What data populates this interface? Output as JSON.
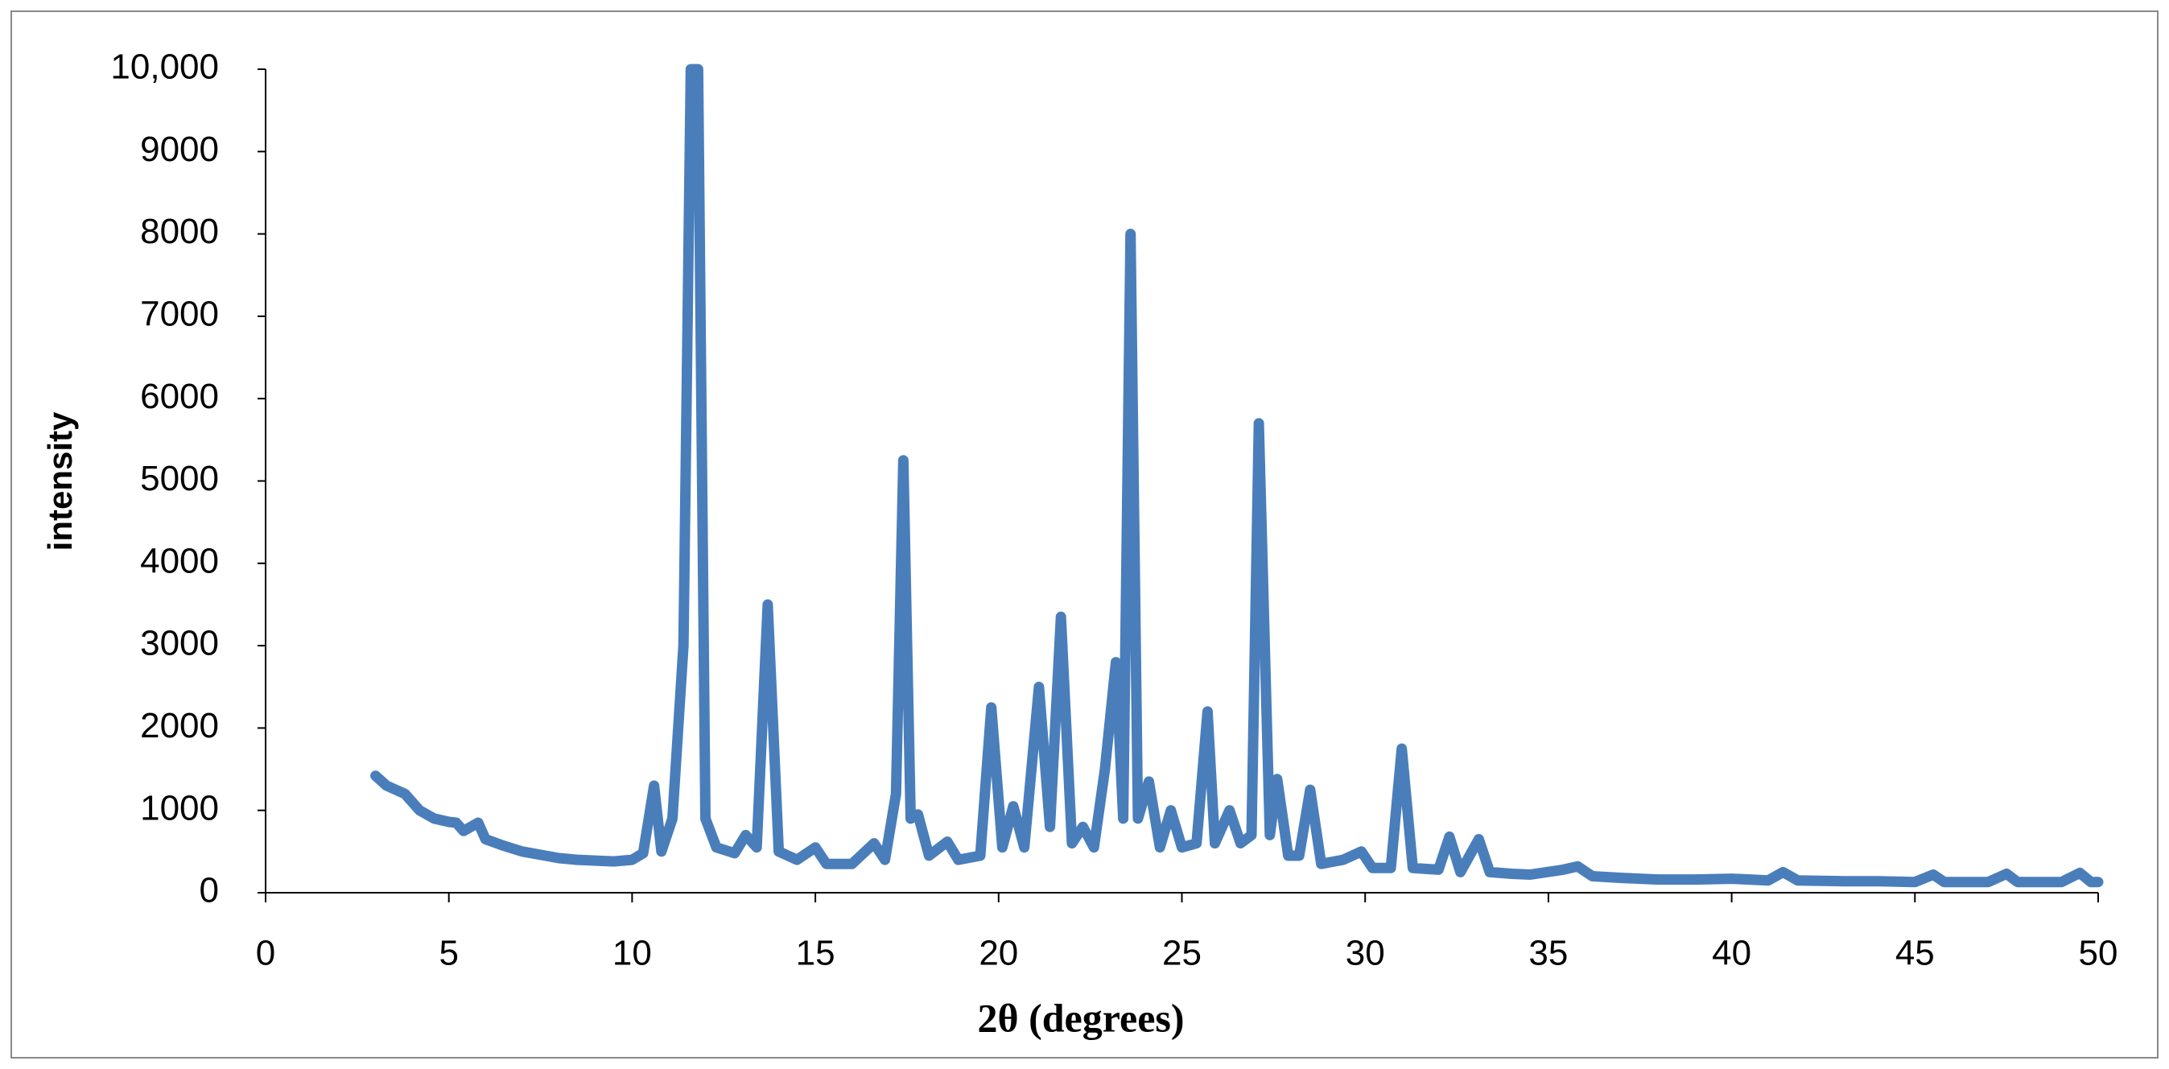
{
  "chart_data": {
    "type": "line",
    "x_label": "2θ (degrees)",
    "y_label": "intensity",
    "color": "#4a7ebb",
    "xlim": [
      0,
      50
    ],
    "xticks": [
      0,
      5,
      10,
      15,
      20,
      25,
      30,
      35,
      40,
      45,
      50
    ],
    "ylim": [
      0,
      10000
    ],
    "yticks": [
      0,
      1000,
      2000,
      3000,
      4000,
      5000,
      6000,
      7000,
      8000,
      9000,
      {
        "value": 10000,
        "label": "10,000"
      }
    ],
    "x": [
      3.0,
      3.3,
      3.8,
      4.2,
      4.6,
      5.0,
      5.2,
      5.4,
      5.8,
      6.0,
      6.5,
      7,
      7.5,
      8,
      8.5,
      9,
      9.5,
      10,
      10.3,
      10.6,
      10.8,
      11.1,
      11.4,
      11.6,
      11.8,
      12.0,
      12.3,
      12.8,
      13.1,
      13.4,
      13.7,
      14.0,
      14.5,
      15.0,
      15.3,
      16,
      16.6,
      16.9,
      17.2,
      17.4,
      17.6,
      17.8,
      18.1,
      18.6,
      18.9,
      19.5,
      19.8,
      20.1,
      20.4,
      20.7,
      21.1,
      21.4,
      21.7,
      22.0,
      22.3,
      22.6,
      22.9,
      23.2,
      23.4,
      23.6,
      23.8,
      24.1,
      24.4,
      24.7,
      25,
      25.4,
      25.7,
      25.9,
      26.3,
      26.6,
      26.9,
      27.1,
      27.4,
      27.6,
      27.9,
      28.2,
      28.5,
      28.8,
      29.4,
      29.9,
      30.2,
      30.7,
      31.0,
      31.3,
      32,
      32.3,
      32.6,
      33.1,
      33.4,
      34,
      34.5,
      35.4,
      35.8,
      36.2,
      37,
      38,
      39,
      40,
      41,
      41.4,
      41.8,
      43,
      44,
      45,
      45.5,
      45.8,
      47,
      47.5,
      47.8,
      49,
      49.5,
      49.8,
      50
    ],
    "values": [
      1420,
      1300,
      1200,
      1000,
      900,
      860,
      850,
      750,
      850,
      650,
      570,
      500,
      460,
      420,
      400,
      390,
      380,
      400,
      480,
      1300,
      500,
      900,
      3000,
      10000,
      10000,
      900,
      550,
      480,
      700,
      550,
      3500,
      500,
      400,
      550,
      350,
      350,
      600,
      400,
      1200,
      5250,
      900,
      950,
      450,
      620,
      400,
      450,
      2250,
      550,
      1050,
      550,
      2500,
      800,
      3350,
      600,
      800,
      550,
      1500,
      2800,
      900,
      8000,
      900,
      1350,
      550,
      1000,
      550,
      600,
      2200,
      600,
      1000,
      600,
      700,
      5700,
      700,
      1380,
      450,
      450,
      1250,
      350,
      400,
      500,
      300,
      300,
      1750,
      300,
      280,
      680,
      250,
      650,
      250,
      230,
      220,
      280,
      320,
      200,
      180,
      160,
      160,
      170,
      150,
      250,
      150,
      140,
      140,
      130,
      220,
      130,
      130,
      230,
      130,
      130,
      240,
      130,
      130
    ]
  }
}
